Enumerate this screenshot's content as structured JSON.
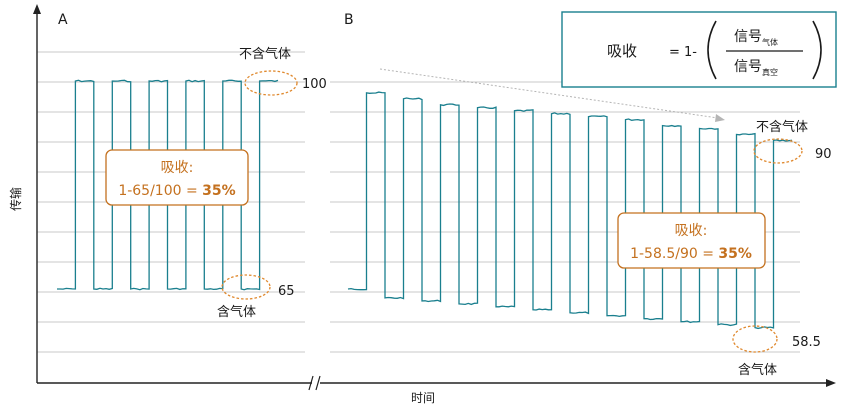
{
  "chart_data": [
    {
      "panel": "A",
      "type": "line",
      "xlabel": "时间",
      "ylabel": "传输",
      "series": [
        {
          "signal_levels": [
            65,
            100,
            65,
            100,
            65,
            100,
            65,
            100,
            65,
            100,
            65,
            100
          ]
        }
      ],
      "reference_values": {
        "without_gas": "100",
        "with_gas": "65"
      },
      "annotations": {
        "without_gas": "不含气体",
        "with_gas": "含气体",
        "absorb_title": "吸收:",
        "absorb_formula": "1-65/100 = ",
        "absorb_result": "35%"
      },
      "grid": true
    },
    {
      "panel": "B",
      "type": "line",
      "xlabel": "时间",
      "ylabel": "传输",
      "series": [
        {
          "signal_levels": [
            65,
            98,
            63.5,
            97,
            63,
            96,
            62.5,
            95.5,
            62,
            95,
            61.5,
            94.5,
            61,
            94,
            60.5,
            93.5,
            60,
            92.5,
            59.5,
            92,
            59,
            91,
            58.5,
            90
          ]
        }
      ],
      "reference_values": {
        "without_gas": "90",
        "with_gas": "58.5"
      },
      "annotations": {
        "without_gas": "不含气体",
        "with_gas": "含气体",
        "absorb_title": "吸收:",
        "absorb_formula": "1-58.5/90 = ",
        "absorb_result": "35%"
      },
      "grid": true
    }
  ],
  "formula": {
    "label": "吸收",
    "equals": "= 1-",
    "numerator": "信号",
    "numerator_sub": "气体",
    "denominator": "信号",
    "denominator_sub": "真空"
  },
  "colors": {
    "signal": "#1a7f8e",
    "orange": "#c4711f",
    "box_border": "#1a7f8e",
    "grid": "#c8c8c8",
    "axis": "#222222"
  }
}
